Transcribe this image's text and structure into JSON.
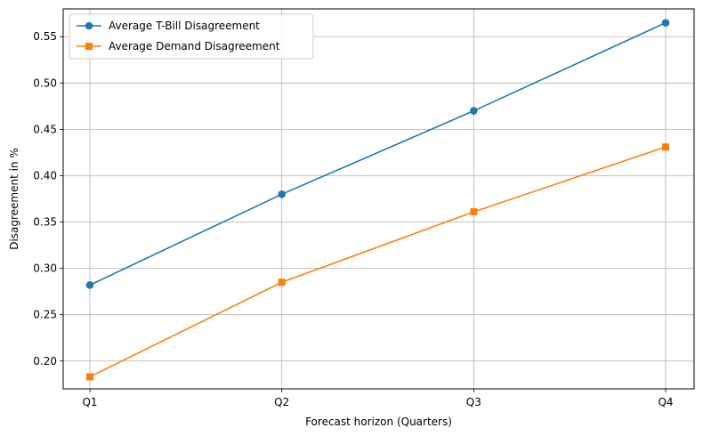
{
  "chart_data": {
    "type": "line",
    "title": "",
    "xlabel": "Forecast horizon (Quarters)",
    "ylabel": "Disagreement in %",
    "categories": [
      "Q1",
      "Q2",
      "Q3",
      "Q4"
    ],
    "ylim": [
      0.17,
      0.58
    ],
    "yticks": [
      0.2,
      0.25,
      0.3,
      0.35,
      0.4,
      0.45,
      0.5,
      0.55
    ],
    "grid": true,
    "legend_position": "top-left",
    "series": [
      {
        "name": "Average T-Bill Disagreement",
        "values": [
          0.282,
          0.38,
          0.47,
          0.565
        ],
        "color": "#1f77b4",
        "marker": "circle"
      },
      {
        "name": "Average Demand Disagreement",
        "values": [
          0.183,
          0.285,
          0.361,
          0.431
        ],
        "color": "#ff7f0e",
        "marker": "square"
      }
    ]
  }
}
